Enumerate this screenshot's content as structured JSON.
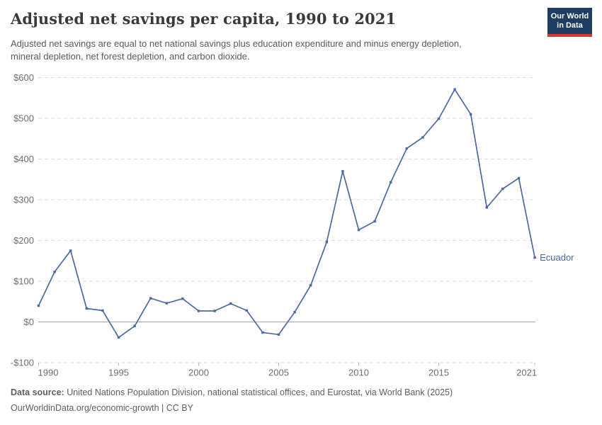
{
  "header": {
    "title": "Adjusted net savings per capita, 1990 to 2021",
    "subtitle": "Adjusted net savings are equal to net national savings plus education expenditure and minus energy depletion,\nmineral depletion, net forest depletion, and carbon dioxide.",
    "logo": {
      "line1": "Our World",
      "line2": "in Data",
      "bg_color": "#1d3d63",
      "stripe_color": "#dc3832"
    }
  },
  "chart_data": {
    "type": "line",
    "title": "Adjusted net savings per capita, 1990 to 2021",
    "xlabel": "",
    "ylabel": "",
    "x": [
      1990,
      1991,
      1992,
      1993,
      1994,
      1995,
      1996,
      1997,
      1998,
      1999,
      2000,
      2001,
      2002,
      2003,
      2004,
      2005,
      2006,
      2007,
      2008,
      2009,
      2010,
      2011,
      2012,
      2013,
      2014,
      2015,
      2016,
      2017,
      2018,
      2019,
      2020,
      2021
    ],
    "series": [
      {
        "name": "Ecuador",
        "color": "#4a69a5",
        "values": [
          40,
          123,
          175,
          33,
          28,
          -38,
          -10,
          58,
          46,
          57,
          27,
          27,
          45,
          28,
          -26,
          -31,
          24,
          90,
          196,
          370,
          226,
          247,
          343,
          426,
          453,
          499,
          571,
          510,
          281,
          327,
          353,
          158
        ]
      }
    ],
    "xticks": [
      1990,
      1995,
      2000,
      2005,
      2010,
      2015,
      2021
    ],
    "yticks": [
      -100,
      0,
      100,
      200,
      300,
      400,
      500,
      600
    ],
    "ytick_labels": [
      "-$100",
      "$0",
      "$100",
      "$200",
      "$300",
      "$400",
      "$500",
      "$600"
    ],
    "ylim": [
      -100,
      600
    ],
    "unit": "$",
    "grid": "horizontal-dashed",
    "zero_line": true,
    "legend_position": "end-of-line-label"
  },
  "footer": {
    "data_source_label": "Data source:",
    "data_source_text": " United Nations Population Division, national statistical offices, and Eurostat, via World Bank (2025)",
    "link_line": "OurWorldinData.org/economic-growth | CC BY"
  }
}
